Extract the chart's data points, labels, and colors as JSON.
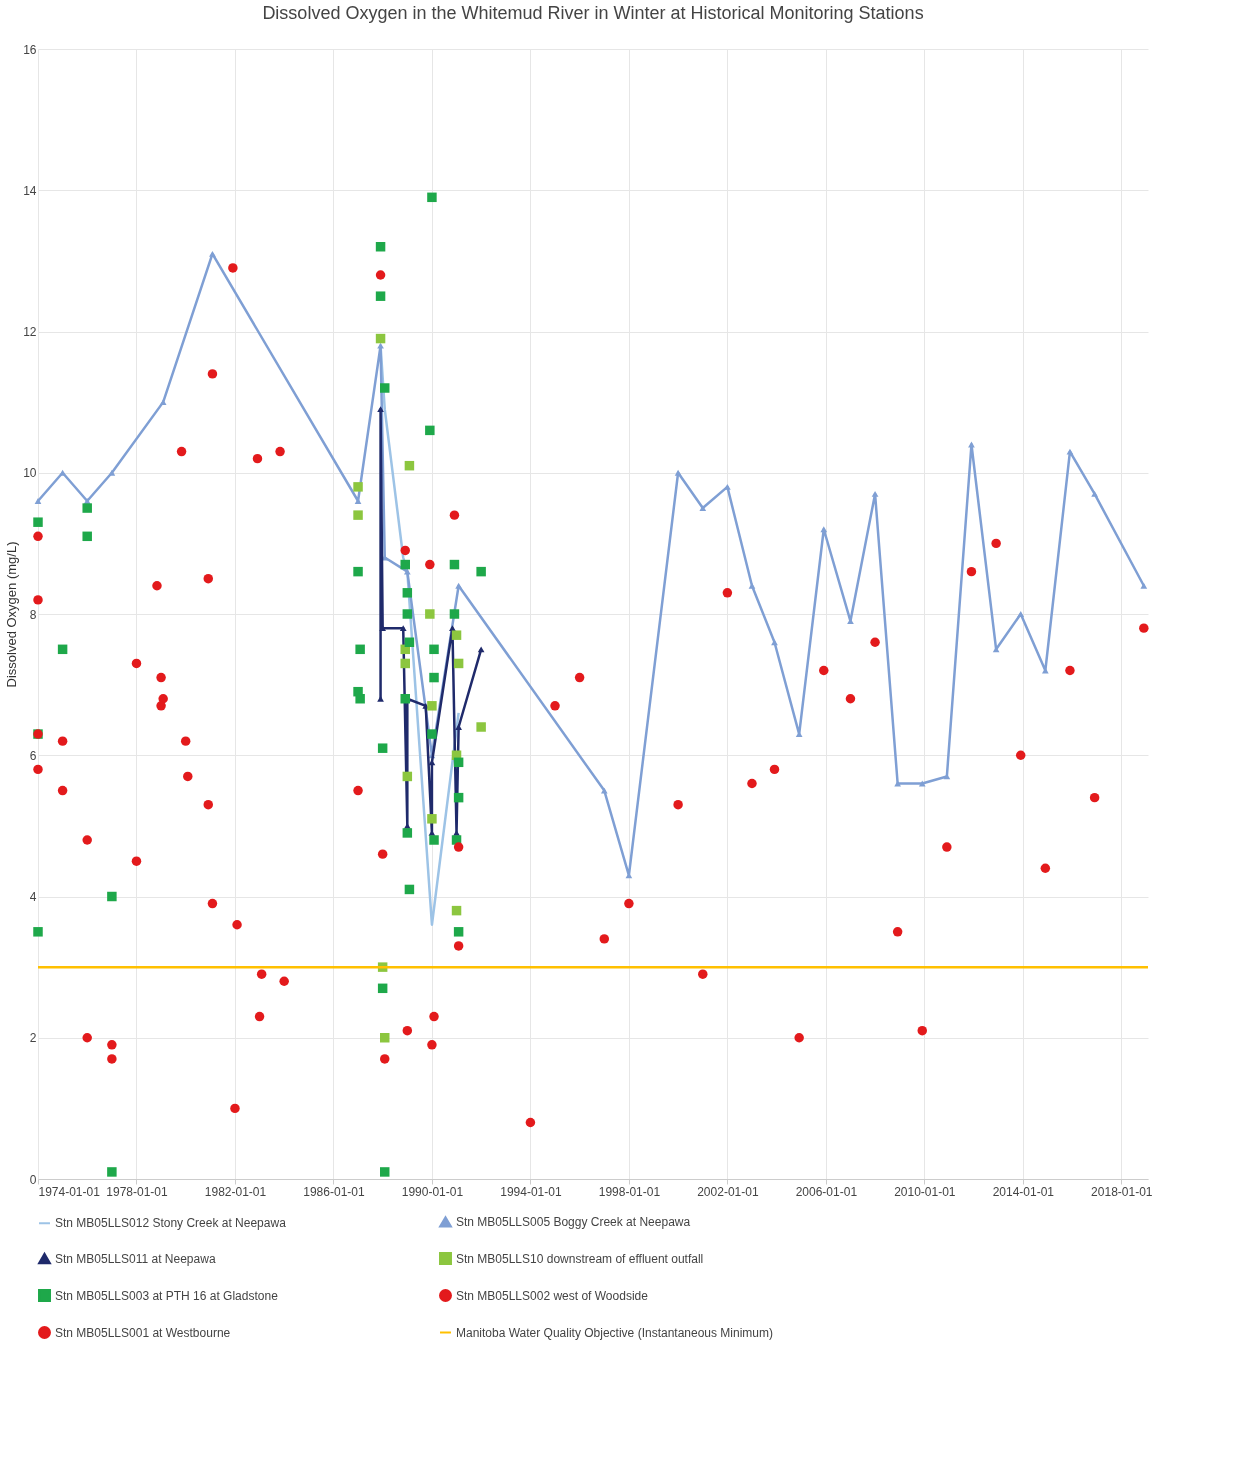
{
  "chart_data": {
    "type": "line",
    "title": "Dissolved Oxygen in the Whitemud River in Winter at Historical Monitoring Stations",
    "ylabel": "Dissolved Oxygen (mg/L)",
    "xlim": [
      "1974-01-01",
      "2019-02-01"
    ],
    "xticks": [
      "1974-01-01",
      "1978-01-01",
      "1982-01-01",
      "1986-01-01",
      "1990-01-01",
      "1994-01-01",
      "1998-01-01",
      "2002-01-01",
      "2006-01-01",
      "2010-01-01",
      "2014-01-01",
      "2018-01-01"
    ],
    "ylim": [
      0,
      16
    ],
    "yticks": [
      0,
      2,
      4,
      6,
      8,
      10,
      12,
      14,
      16
    ],
    "grid": true,
    "legend": "bottom",
    "series": [
      {
        "name": "Stn MB05LLS012 Stony Creek at Neepawa",
        "color": "#9dc3e6",
        "marker": "none",
        "x": [
          "1987-12",
          "1988-02",
          "1988-11",
          "1989-01",
          "1990-01",
          "1991-02"
        ],
        "values": [
          11.8,
          10.9,
          8.8,
          8.6,
          3.6,
          6.6
        ]
      },
      {
        "name": "Stn MB05LLS005 Boggy Creek at Neepawa",
        "color": "#7f9fd4",
        "marker": "triangle",
        "x": [
          "1974-01",
          "1975-01",
          "1976-01",
          "1977-01",
          "1979-02",
          "1981-02",
          "1987-01",
          "1987-12",
          "1988-02",
          "1989-01",
          "1990-01",
          "1991-02",
          "1997-01",
          "1998-01",
          "2000-01",
          "2001-01",
          "2002-01",
          "2003-01",
          "2003-12",
          "2004-12",
          "2005-12",
          "2007-01",
          "2008-01",
          "2008-12",
          "2009-12",
          "2010-12",
          "2011-12",
          "2012-12",
          "2013-12",
          "2014-12",
          "2015-12",
          "2016-12",
          "2018-12"
        ],
        "values": [
          9.6,
          10.0,
          9.6,
          10.0,
          11.0,
          13.1,
          9.6,
          11.8,
          8.8,
          8.6,
          6.0,
          8.4,
          5.5,
          4.3,
          10.0,
          9.5,
          9.8,
          8.4,
          7.6,
          6.3,
          9.2,
          7.9,
          9.7,
          5.6,
          5.6,
          5.7,
          10.4,
          7.5,
          8.0,
          7.2,
          10.3,
          9.7,
          8.4
        ]
      },
      {
        "name": "Stn MB05LLS011 at Neepawa",
        "color": "#1f2a6b",
        "marker": "triangle",
        "x": [
          "1987-12",
          "1987-12",
          "1988-01",
          "1988-11",
          "1989-01",
          "1989-01",
          "1989-10",
          "1990-01",
          "1990-01",
          "1990-11",
          "1991-01",
          "1991-02",
          "1992-01"
        ],
        "values": [
          6.8,
          10.9,
          7.8,
          7.8,
          5.0,
          6.8,
          6.7,
          4.9,
          5.9,
          7.8,
          4.9,
          6.4,
          7.5
        ]
      },
      {
        "name": "Stn MB05LLS10 downstream of effluent outfall",
        "type": "scatter",
        "color": "#8cc63f",
        "marker": "square",
        "x": [
          "1987-01",
          "1987-01",
          "1987-12",
          "1988-01",
          "1988-02",
          "1989-02",
          "1988-12",
          "1988-12",
          "1989-01",
          "1989-12",
          "1990-01",
          "1990-01",
          "1991-01",
          "1991-02",
          "1991-01",
          "1991-01",
          "1992-01"
        ],
        "values": [
          9.8,
          9.4,
          11.9,
          3.0,
          2.0,
          10.1,
          7.5,
          7.3,
          5.7,
          8.0,
          6.7,
          5.1,
          7.7,
          7.3,
          6.0,
          3.8,
          6.4
        ]
      },
      {
        "name": "Stn MB05LLS003 at PTH 16 at Gladstone",
        "type": "scatter",
        "color": "#1ea84a",
        "marker": "square",
        "x": [
          "1974-01",
          "1974-01",
          "1974-01",
          "1975-01",
          "1976-01",
          "1976-01",
          "1977-01",
          "1977-01",
          "1987-01",
          "1987-02",
          "1987-01",
          "1987-02",
          "1987-12",
          "1987-12",
          "1988-02",
          "1988-01",
          "1988-01",
          "1988-02",
          "1988-12",
          "1989-01",
          "1989-01",
          "1989-02",
          "1988-12",
          "1989-01",
          "1989-02",
          "1989-12",
          "1990-01",
          "1990-02",
          "1990-02",
          "1990-01",
          "1990-02",
          "1990-12",
          "1990-12",
          "1991-02",
          "1991-02",
          "1991-01",
          "1991-02",
          "1992-01"
        ],
        "values": [
          9.3,
          6.3,
          3.5,
          7.5,
          9.5,
          9.1,
          4.0,
          0.1,
          8.6,
          7.5,
          6.9,
          6.8,
          13.2,
          12.5,
          11.2,
          6.1,
          2.7,
          0.1,
          8.7,
          8.3,
          8.0,
          7.6,
          6.8,
          4.9,
          4.1,
          10.6,
          13.9,
          7.5,
          7.1,
          6.3,
          4.8,
          8.7,
          8.0,
          5.9,
          5.4,
          4.8,
          3.5,
          8.6
        ]
      },
      {
        "name": "Stn MB05LLS002 west of Woodside",
        "type": "scatter",
        "color": "#e31a1c",
        "marker": "circle",
        "x": [
          "1987-01",
          "1987-12",
          "1988-01",
          "1988-02",
          "1988-12",
          "1989-01",
          "1989-12",
          "1990-01",
          "1990-02",
          "1990-12",
          "1991-02",
          "1991-02",
          "1994-01",
          "1995-01",
          "1996-01",
          "1997-01",
          "1998-01",
          "2000-01",
          "2001-01",
          "2002-01",
          "2003-01",
          "2003-12",
          "2004-12",
          "2005-12",
          "2007-01",
          "2008-01",
          "2008-12",
          "2009-12",
          "2010-12",
          "2011-12",
          "2012-12",
          "2013-12",
          "2014-12",
          "2015-12",
          "2016-12",
          "2018-12"
        ],
        "values": [
          5.5,
          12.8,
          4.6,
          1.7,
          8.9,
          2.1,
          8.7,
          1.9,
          2.3,
          9.4,
          4.7,
          3.3,
          0.8,
          6.7,
          7.1,
          3.4,
          3.9,
          5.3,
          2.9,
          8.3,
          5.6,
          5.8,
          2.0,
          7.2,
          6.8,
          7.6,
          3.5,
          2.1,
          4.7,
          8.6,
          9.0,
          6.0,
          4.4,
          7.2,
          5.4,
          7.8
        ]
      },
      {
        "name": "Stn MB05LLS001 at Westbourne",
        "type": "scatter",
        "color": "#e31a1c",
        "marker": "circle",
        "x": [
          "1974-01",
          "1974-01",
          "1974-01",
          "1974-01",
          "1975-01",
          "1975-01",
          "1976-01",
          "1976-01",
          "1977-01",
          "1977-01",
          "1978-01",
          "1978-01",
          "1978-11",
          "1979-01",
          "1979-02",
          "1979-01",
          "1979-11",
          "1980-01",
          "1980-02",
          "1980-12",
          "1980-12",
          "1981-02",
          "1981-02",
          "1981-12",
          "1982-01",
          "1982-02",
          "1982-12",
          "1983-01",
          "1983-02",
          "1983-11",
          "1984-01"
        ],
        "values": [
          9.1,
          8.2,
          6.3,
          5.8,
          6.2,
          5.5,
          4.8,
          2.0,
          1.9,
          1.7,
          7.3,
          4.5,
          8.4,
          7.1,
          6.8,
          6.7,
          10.3,
          6.2,
          5.7,
          8.5,
          5.3,
          11.4,
          3.9,
          12.9,
          1.0,
          3.6,
          10.2,
          2.3,
          2.9,
          10.3,
          2.8
        ]
      }
    ],
    "ref_lines": [
      {
        "axis": "y",
        "value": 3,
        "label": "Manitoba Water Quality Objective (Instantaneous Minimum)",
        "color": "#ffc000"
      }
    ]
  }
}
